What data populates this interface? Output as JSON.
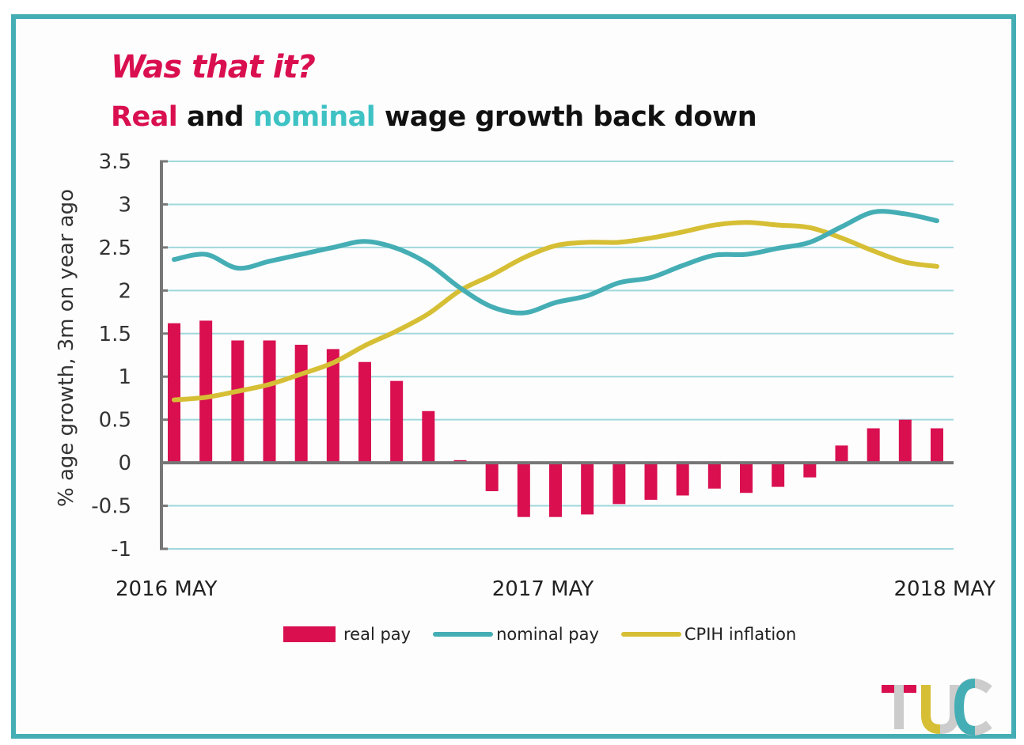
{
  "header": {
    "title": "Was that it?",
    "subtitle_parts": {
      "real": "Real",
      "and": " and ",
      "nominal": "nominal",
      "rest": " wage growth back down"
    }
  },
  "colors": {
    "frame": "#45aeb5",
    "real": "#d90f50",
    "nominal": "#45aeb5",
    "cpih": "#d6bf35",
    "grid": "#9fd8dc",
    "axis": "#777777"
  },
  "legend": {
    "real": "real pay",
    "nominal": "nominal pay",
    "cpih": "CPIH inflation"
  },
  "logo": {
    "text": "TUC"
  },
  "chart_data": {
    "type": "bar+line",
    "title": "Was that it?",
    "subtitle": "Real and nominal wage growth back down",
    "ylabel": "% age growth, 3m on year ago",
    "xlabel": "",
    "ylim": [
      -1,
      3.5
    ],
    "yticks": [
      3.5,
      3,
      2.5,
      2,
      1.5,
      1,
      0.5,
      0,
      -0.5,
      -1
    ],
    "ytick_labels": [
      "3.5",
      "3",
      "2.5",
      "2",
      "1.5",
      "1",
      "0.5",
      "0",
      "-0.5",
      "-1"
    ],
    "xtick_labels": [
      {
        "index": 0,
        "label": "2016 MAY"
      },
      {
        "index": 12,
        "label": "2017 MAY"
      },
      {
        "index": 24,
        "label": "2018 MAY"
      }
    ],
    "grid": true,
    "legend_position": "bottom",
    "x": [
      "2016-05",
      "2016-06",
      "2016-07",
      "2016-08",
      "2016-09",
      "2016-10",
      "2016-11",
      "2016-12",
      "2017-01",
      "2017-02",
      "2017-03",
      "2017-04",
      "2017-05",
      "2017-06",
      "2017-07",
      "2017-08",
      "2017-09",
      "2017-10",
      "2017-11",
      "2017-12",
      "2018-01",
      "2018-02",
      "2018-03",
      "2018-04",
      "2018-05"
    ],
    "series": [
      {
        "name": "real pay",
        "type": "bar",
        "values": [
          1.62,
          1.65,
          1.42,
          1.42,
          1.37,
          1.32,
          1.17,
          0.95,
          0.6,
          0.03,
          -0.33,
          -0.63,
          -0.63,
          -0.6,
          -0.48,
          -0.43,
          -0.38,
          -0.3,
          -0.35,
          -0.28,
          -0.17,
          0.2,
          0.4,
          0.5,
          0.4
        ]
      },
      {
        "name": "nominal pay",
        "type": "line",
        "values": [
          2.36,
          2.42,
          2.26,
          2.34,
          2.42,
          2.5,
          2.57,
          2.49,
          2.31,
          2.03,
          1.81,
          1.74,
          1.86,
          1.94,
          2.09,
          2.15,
          2.29,
          2.41,
          2.42,
          2.49,
          2.56,
          2.74,
          2.91,
          2.89,
          2.81
        ]
      },
      {
        "name": "CPIH inflation",
        "type": "line",
        "values": [
          0.73,
          0.76,
          0.83,
          0.91,
          1.03,
          1.16,
          1.36,
          1.53,
          1.73,
          2.0,
          2.18,
          2.38,
          2.52,
          2.56,
          2.56,
          2.61,
          2.68,
          2.76,
          2.79,
          2.76,
          2.73,
          2.61,
          2.46,
          2.33,
          2.28
        ]
      }
    ]
  }
}
